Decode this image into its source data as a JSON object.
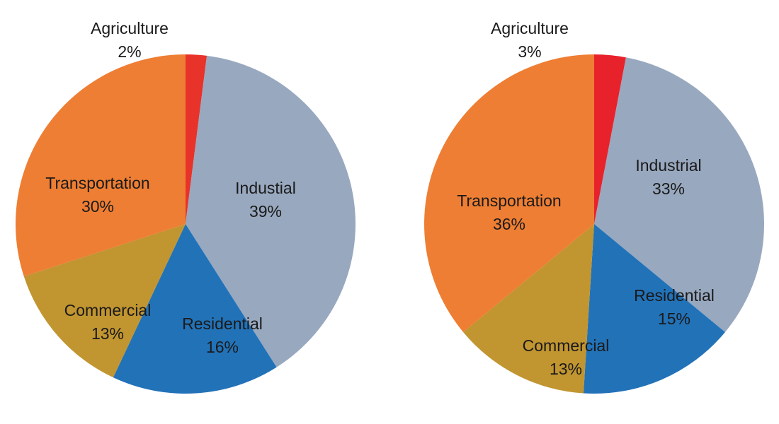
{
  "chart_data": [
    {
      "type": "pie",
      "categories": [
        "Agriculture",
        "Industial",
        "Residential",
        "Commercial",
        "Transportation"
      ],
      "values": [
        2,
        39,
        16,
        13,
        30
      ],
      "labels": [
        "2%",
        "39%",
        "16%",
        "13%",
        "30%"
      ],
      "colors": [
        "#e8332a",
        "#98a8bf",
        "#2272b8",
        "#c19530",
        "#ee7e33"
      ],
      "start": "top, clockwise",
      "legend": "none"
    },
    {
      "type": "pie",
      "categories": [
        "Agriculture",
        "Industrial",
        "Residential",
        "Commercial",
        "Transportation"
      ],
      "values": [
        3,
        33,
        15,
        13,
        36
      ],
      "labels": [
        "3%",
        "33%",
        "15%",
        "13%",
        "36%"
      ],
      "colors": [
        "#e8222b",
        "#98a8bf",
        "#2272b8",
        "#c19530",
        "#ee7e33"
      ],
      "start": "top, clockwise",
      "legend": "none"
    }
  ]
}
